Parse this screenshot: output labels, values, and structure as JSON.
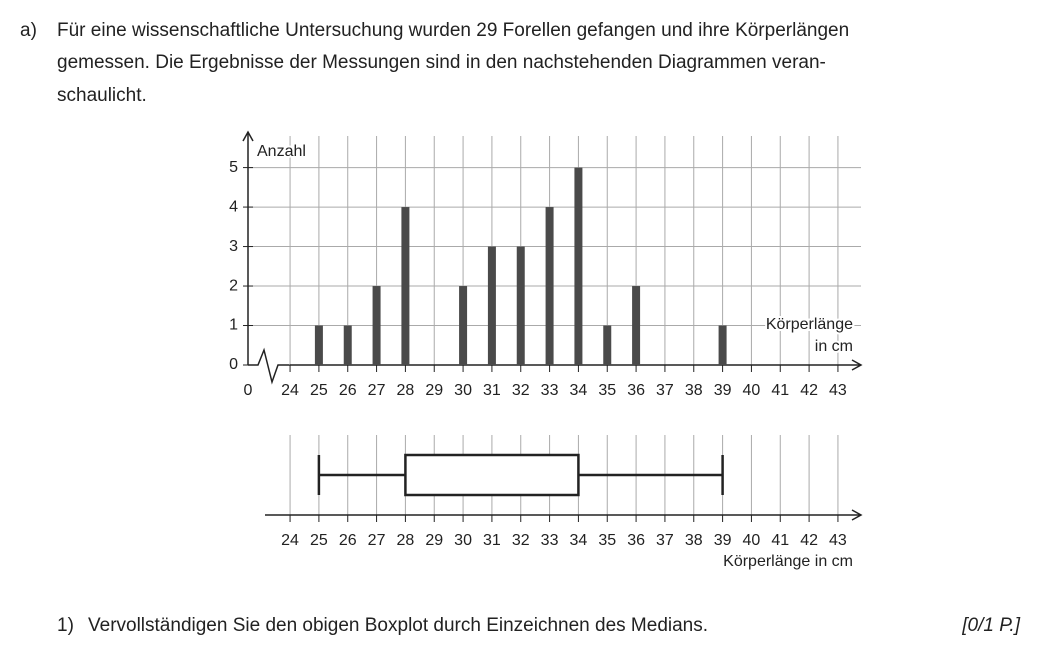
{
  "intro": {
    "label": "a)",
    "lines": [
      "Für eine wissenschaftliche Untersuchung wurden 29 Forellen gefangen und ihre Körperlängen",
      "gemessen. Die Ergebnisse der Messungen sind in den nachstehenden Diagrammen veran-",
      "schaulicht."
    ]
  },
  "chart_data": [
    {
      "type": "bar",
      "y_label": "Anzahl",
      "x_label": [
        "Körperlänge",
        "in cm"
      ],
      "x_origin": 0,
      "x": [
        25,
        26,
        27,
        28,
        30,
        31,
        32,
        33,
        34,
        35,
        36,
        39
      ],
      "values": [
        1,
        1,
        2,
        4,
        2,
        3,
        3,
        4,
        5,
        1,
        2,
        1
      ],
      "color": "#4a4a4a",
      "xlim": [
        23.2,
        43.8
      ],
      "ylim": [
        0,
        5.8
      ],
      "xticks": [
        24,
        25,
        26,
        27,
        28,
        29,
        30,
        31,
        32,
        33,
        34,
        35,
        36,
        37,
        38,
        39,
        40,
        41,
        42,
        43
      ],
      "yticks": [
        0,
        1,
        2,
        3,
        4,
        5
      ],
      "grid": true
    },
    {
      "type": "box",
      "x_label": "Körperlänge in cm",
      "min": 25,
      "q1": 28,
      "q3": 34,
      "max": 39,
      "xlim": [
        23.2,
        43.8
      ],
      "xticks": [
        24,
        25,
        26,
        27,
        28,
        29,
        30,
        31,
        32,
        33,
        34,
        35,
        36,
        37,
        38,
        39,
        40,
        41,
        42,
        43
      ],
      "grid": true
    }
  ],
  "task": {
    "number": "1)",
    "text": "Vervollständigen Sie den obigen Boxplot durch Einzeichnen des Medians.",
    "points": "[0/1 P.]"
  }
}
